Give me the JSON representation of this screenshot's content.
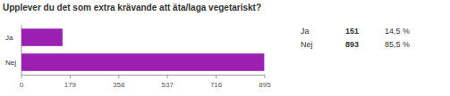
{
  "chart_data": {
    "type": "bar",
    "orientation": "horizontal",
    "title": "Upplever du det som extra krävande att äta/laga vegetariskt?",
    "categories": [
      "Ja",
      "Nej"
    ],
    "values": [
      151,
      893
    ],
    "percentages": [
      14.5,
      85.5
    ],
    "percentage_labels": [
      "14,5 %",
      "85,5 %"
    ],
    "color": "#9b1fb0",
    "xlim": [
      0,
      895
    ],
    "xticks": [
      0,
      179,
      358,
      537,
      716,
      895
    ],
    "grid": false
  }
}
